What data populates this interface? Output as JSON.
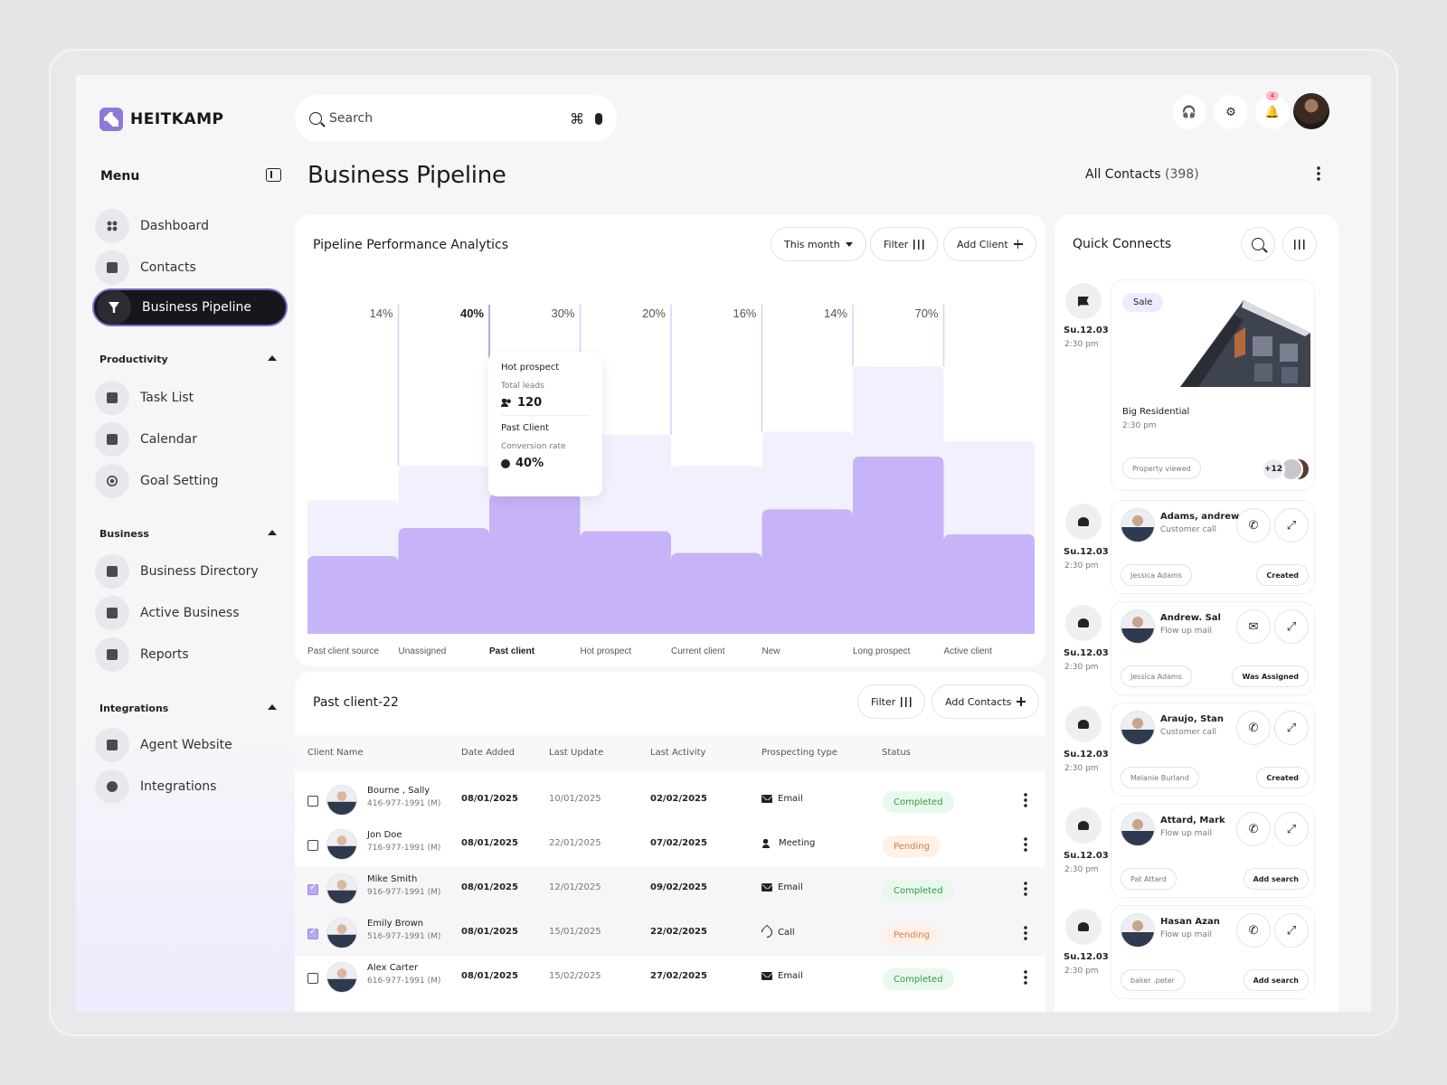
{
  "brand": {
    "name": "HEITKAMP"
  },
  "search": {
    "placeholder": "Search",
    "shortcut_glyph": "⌘"
  },
  "notifications": {
    "count": "4"
  },
  "sidebar": {
    "menu_label": "Menu",
    "main_items": [
      {
        "label": "Dashboard",
        "icon": "grid-icon",
        "active": false
      },
      {
        "label": "Contacts",
        "icon": "contact-card-icon",
        "active": false
      },
      {
        "label": "Business Pipeline",
        "icon": "filter-icon",
        "active": true
      }
    ],
    "sections": [
      {
        "title": "Productivity",
        "items": [
          {
            "label": "Task List",
            "icon": "clipboard-icon"
          },
          {
            "label": "Calendar",
            "icon": "calendar-icon"
          },
          {
            "label": "Goal Setting",
            "icon": "target-icon"
          }
        ]
      },
      {
        "title": "Business",
        "items": [
          {
            "label": "Business Directory",
            "icon": "id-card-icon"
          },
          {
            "label": "Active Business",
            "icon": "briefcase-icon"
          },
          {
            "label": "Reports",
            "icon": "report-icon"
          }
        ]
      },
      {
        "title": "Integrations",
        "items": [
          {
            "label": "Agent Website",
            "icon": "monitor-icon"
          },
          {
            "label": "Integrations",
            "icon": "network-icon"
          }
        ]
      }
    ]
  },
  "header": {
    "title": "Business Pipeline",
    "all_contacts_label": "All Contacts",
    "all_contacts_count": "(398)"
  },
  "analytics": {
    "title": "Pipeline Performance Analytics",
    "period": "This month",
    "filter_label": "Filter",
    "add_client_label": "Add Client",
    "tooltip": {
      "heading": "Hot prospect",
      "total_leads_label": "Total leads",
      "total_leads_value": "120",
      "section2": "Past Client",
      "conversion_label": "Conversion rate",
      "conversion_value": "40%"
    }
  },
  "chart_data": {
    "type": "bar",
    "categories": [
      "Past client source",
      "Unassigned",
      "Past client",
      "Hot prospect",
      "Current client",
      "New",
      "Long prospect",
      "Active client"
    ],
    "percent_labels": [
      "14%",
      "40%",
      "30%",
      "20%",
      "16%",
      "14%",
      "70%"
    ],
    "series": [
      {
        "values": [
          43,
          54,
          75,
          64,
          54,
          65,
          86,
          62
        ],
        "color": "#f3f0fd"
      },
      {
        "values": [
          25,
          34,
          45,
          33,
          26,
          40,
          57,
          32
        ],
        "color": "#c6b3f8"
      }
    ],
    "ylim": [
      0,
      100
    ]
  },
  "table": {
    "title": "Past client-22",
    "filter_label": "Filter",
    "add_label": "Add Contacts",
    "columns": [
      "Client Name",
      "Date Added",
      "Last Update",
      "Last Activity",
      "Prospecting type",
      "Status"
    ],
    "rows": [
      {
        "name": "Bourne , Sally",
        "phone": "416-977-1991 (M)",
        "added": "08/01/2025",
        "updated": "10/01/2025",
        "activity": "02/02/2025",
        "type": "Email",
        "type_icon": "mail-icon",
        "status": "Completed",
        "checked": false
      },
      {
        "name": "Jon Doe",
        "phone": "716-977-1991 (M)",
        "added": "08/01/2025",
        "updated": "22/01/2025",
        "activity": "07/02/2025",
        "type": "Meeting",
        "type_icon": "meeting-icon",
        "status": "Pending",
        "checked": false
      },
      {
        "name": "Mike Smith",
        "phone": "916-977-1991 (M)",
        "added": "08/01/2025",
        "updated": "12/01/2025",
        "activity": "09/02/2025",
        "type": "Email",
        "type_icon": "mail-icon",
        "status": "Completed",
        "checked": true
      },
      {
        "name": "Emily Brown",
        "phone": "516-977-1991 (M)",
        "added": "08/01/2025",
        "updated": "15/01/2025",
        "activity": "22/02/2025",
        "type": "Call",
        "type_icon": "phone-icon",
        "status": "Pending",
        "checked": true
      },
      {
        "name": "Alex Carter",
        "phone": "616-977-1991 (M)",
        "added": "08/01/2025",
        "updated": "15/02/2025",
        "activity": "27/02/2025",
        "type": "Email",
        "type_icon": "mail-icon",
        "status": "Completed",
        "checked": false
      }
    ]
  },
  "quick_connects": {
    "title": "Quick Connects",
    "property": {
      "tag": "Sale",
      "name": "Big Residential",
      "time": "2:30 pm",
      "status": "Property viewed",
      "more_count": "+12",
      "date": "Su.12.03",
      "date_time": "2:30 pm"
    },
    "entries": [
      {
        "name": "Adams, andrew",
        "sub": "Customer call",
        "contact": "Jessica Adams",
        "action": "Created",
        "date": "Su.12.03",
        "time": "2:30 pm",
        "btn_icon": "phone-icon"
      },
      {
        "name": "Andrew. Sal",
        "sub": "Flow up mail",
        "contact": "Jessica Adams",
        "action": "Was Assigned",
        "date": "Su.12.03",
        "time": "2:30 pm",
        "btn_icon": "mail-icon"
      },
      {
        "name": "Araujo, Stan",
        "sub": "Customer call",
        "contact": "Melanie Burland",
        "action": "Created",
        "date": "Su.12.03",
        "time": "2:30 pm",
        "btn_icon": "phone-icon"
      },
      {
        "name": "Attard, Mark",
        "sub": "Flow up mail",
        "contact": "Pat Attard",
        "action": "Add search",
        "date": "Su.12.03",
        "time": "2:30 pm",
        "btn_icon": "phone-icon"
      },
      {
        "name": "Hasan Azan",
        "sub": "Flow up mail",
        "contact": "baker .peter",
        "action": "Add search",
        "date": "Su.12.03",
        "time": "2:30 pm",
        "btn_icon": "phone-icon"
      }
    ]
  }
}
